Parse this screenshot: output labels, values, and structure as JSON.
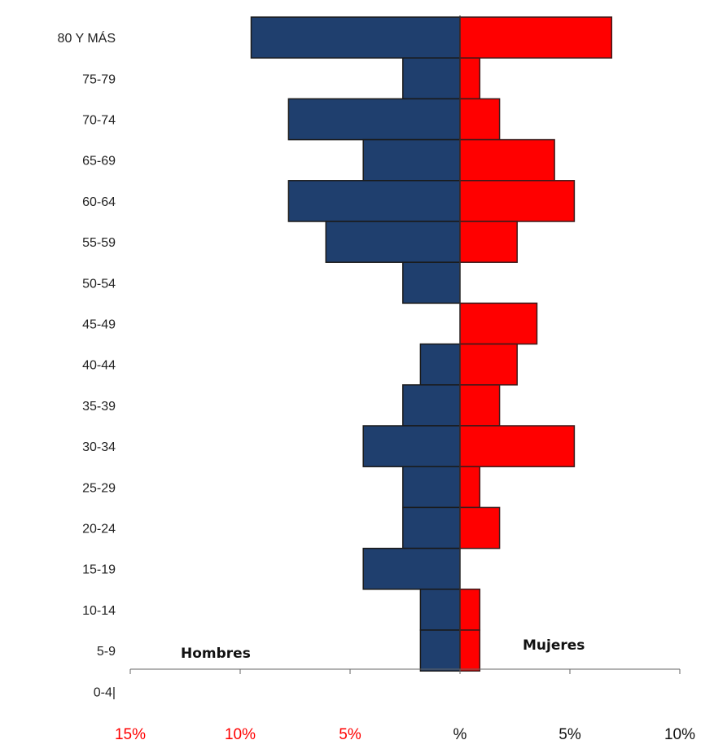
{
  "chart_data": {
    "type": "bar",
    "orientation": "horizontal-pyramid",
    "categories": [
      "80 Y MÁS",
      "75-79",
      "70-74",
      "65-69",
      "60-64",
      "55-59",
      "50-54",
      "45-49",
      "40-44",
      "35-39",
      "30-34",
      "25-29",
      "20-24",
      "15-19",
      "10-14",
      "5-9",
      "0-4|"
    ],
    "series": [
      {
        "name": "Hombres",
        "color": "#1f3f6e",
        "values": [
          9.5,
          2.6,
          7.8,
          4.4,
          7.8,
          6.1,
          2.6,
          0,
          1.8,
          2.6,
          4.4,
          2.6,
          2.6,
          4.4,
          1.8,
          1.8,
          0
        ]
      },
      {
        "name": "Mujeres",
        "color": "#ff0000",
        "values": [
          6.9,
          0.9,
          1.8,
          4.3,
          5.2,
          2.6,
          0,
          3.5,
          2.6,
          1.8,
          5.2,
          0.9,
          1.8,
          0,
          0.9,
          0.9,
          0
        ]
      }
    ],
    "xlim": [
      -15,
      10
    ],
    "x_ticks": [
      {
        "value": -15,
        "label": "15%",
        "color": "#ff0000"
      },
      {
        "value": -10,
        "label": "10%",
        "color": "#ff0000"
      },
      {
        "value": -5,
        "label": "5%",
        "color": "#ff0000"
      },
      {
        "value": 0,
        "label": "%",
        "color": "#111111"
      },
      {
        "value": 5,
        "label": "5%",
        "color": "#111111"
      },
      {
        "value": 10,
        "label": "10%",
        "color": "#111111"
      }
    ],
    "title": "",
    "xlabel": "",
    "ylabel": "",
    "grid": false
  }
}
